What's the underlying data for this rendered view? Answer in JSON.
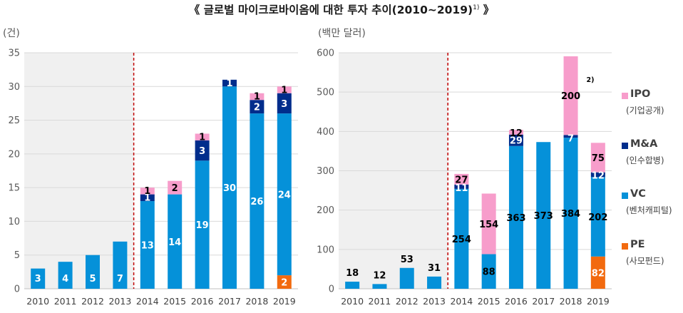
{
  "title": {
    "text": "《 글로벌 마이크로바이옴에 대한 투자 추이(2010~2019)",
    "note": "1)",
    "suffix": " 》"
  },
  "colors": {
    "IPO": "#f79dcb",
    "MA": "#002d8c",
    "VC": "#0591d9",
    "PE": "#f26a0f",
    "divider": "#c00000",
    "shade": "#f0f0f0"
  },
  "legend": [
    {
      "key": "IPO",
      "name": "IPO",
      "sub": "(기업공개)"
    },
    {
      "key": "MA",
      "name": "M&A",
      "sub": "(인수합병)"
    },
    {
      "key": "VC",
      "name": "VC",
      "sub": "(벤처캐피털)"
    },
    {
      "key": "PE",
      "name": "PE",
      "sub": "(사모펀드)"
    }
  ],
  "chart_data": [
    {
      "type": "bar",
      "stacked": true,
      "unit": "(건)",
      "categories": [
        "2010",
        "2011",
        "2012",
        "2013",
        "2014",
        "2015",
        "2016",
        "2017",
        "2018",
        "2019"
      ],
      "ylim": [
        0,
        35
      ],
      "yticks": [
        0,
        5,
        10,
        15,
        20,
        25,
        30,
        35
      ],
      "divider_after": "2013",
      "series": [
        {
          "name": "PE",
          "values": [
            0,
            0,
            0,
            0,
            0,
            0,
            0,
            0,
            0,
            2
          ]
        },
        {
          "name": "VC",
          "values": [
            3,
            4,
            5,
            7,
            13,
            14,
            19,
            30,
            26,
            24
          ]
        },
        {
          "name": "M&A",
          "values": [
            0,
            0,
            0,
            0,
            1,
            0,
            3,
            1,
            2,
            3
          ]
        },
        {
          "name": "IPO",
          "values": [
            0,
            0,
            0,
            0,
            1,
            2,
            1,
            0,
            1,
            1
          ]
        }
      ]
    },
    {
      "type": "bar",
      "stacked": true,
      "unit": "(백만 달러)",
      "categories": [
        "2010",
        "2011",
        "2012",
        "2013",
        "2014",
        "2015",
        "2016",
        "2017",
        "2018",
        "2019"
      ],
      "ylim": [
        0,
        600
      ],
      "yticks": [
        0,
        100,
        200,
        300,
        400,
        500,
        600
      ],
      "divider_after": "2013",
      "series": [
        {
          "name": "PE",
          "values": [
            0,
            0,
            0,
            0,
            0,
            0,
            0,
            0,
            0,
            82
          ]
        },
        {
          "name": "VC",
          "values": [
            18,
            12,
            53,
            31,
            254,
            88,
            363,
            373,
            384,
            202
          ]
        },
        {
          "name": "M&A",
          "values": [
            0,
            0,
            0,
            0,
            11,
            0,
            29,
            0,
            7,
            12
          ]
        },
        {
          "name": "IPO",
          "values": [
            0,
            0,
            0,
            0,
            27,
            154,
            12,
            0,
            200,
            75
          ]
        }
      ],
      "annotations": [
        {
          "category": "2018",
          "series": "IPO",
          "text": "2)"
        }
      ]
    }
  ]
}
